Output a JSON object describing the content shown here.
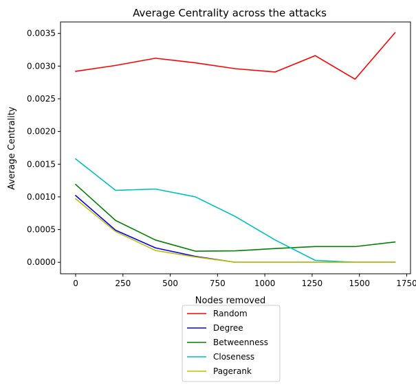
{
  "chart_data": {
    "type": "line",
    "title": "Average Centrality across the attacks",
    "xlabel": "Nodes removed",
    "ylabel": "Average Centrality",
    "xlim": [
      -80,
      1770
    ],
    "ylim": [
      -0.000176,
      0.003675
    ],
    "xticks": [
      0,
      250,
      500,
      750,
      1000,
      1250,
      1500,
      1750
    ],
    "xtick_labels": [
      "0",
      "250",
      "500",
      "750",
      "1000",
      "1250",
      "1500",
      "1750"
    ],
    "yticks": [
      0,
      0.0005,
      0.001,
      0.0015,
      0.002,
      0.0025,
      0.003,
      0.0035
    ],
    "ytick_labels": [
      "0.0000",
      "0.0005",
      "0.0010",
      "0.0015",
      "0.0020",
      "0.0025",
      "0.0030",
      "0.0035"
    ],
    "grid": false,
    "legend_position": "below plot",
    "x": [
      0,
      211,
      422,
      633,
      844,
      1055,
      1266,
      1477,
      1688
    ],
    "series": [
      {
        "name": "Random",
        "color": "#ff0000",
        "values": [
          0.00292,
          0.00301,
          0.00312,
          0.00305,
          0.00296,
          0.00291,
          0.00316,
          0.0028,
          0.00351
        ]
      },
      {
        "name": "Degree",
        "color": "#0000ff",
        "values": [
          0.00102,
          0.00049,
          0.00022,
          9e-05,
          0.0,
          0.0,
          0.0,
          0.0,
          0.0
        ]
      },
      {
        "name": "Betweenness",
        "color": "#008000",
        "values": [
          0.00119,
          0.00064,
          0.00034,
          0.00017,
          0.000175,
          0.00021,
          0.00024,
          0.00024,
          0.00031
        ]
      },
      {
        "name": "Closeness",
        "color": "#00bfbf",
        "values": [
          0.00158,
          0.0011,
          0.00112,
          0.001,
          0.0007,
          0.00034,
          3e-05,
          0.0,
          0.0
        ]
      },
      {
        "name": "Pagerank",
        "color": "#bfbf00",
        "values": [
          0.00097,
          0.00047,
          0.00018,
          8e-05,
          0.0,
          0.0,
          0.0,
          0.0,
          0.0
        ]
      }
    ]
  }
}
